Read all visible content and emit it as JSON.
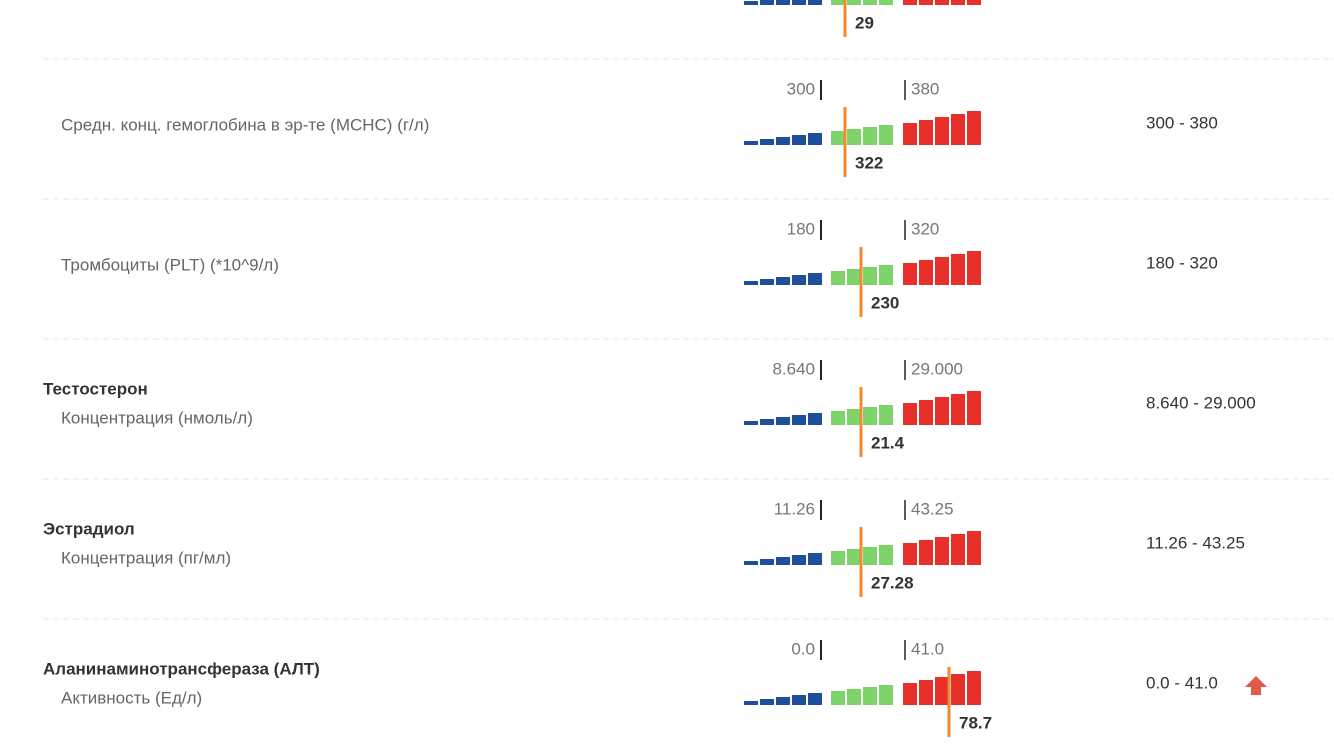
{
  "rows": [
    {
      "value": "29"
    },
    {
      "name": "Средн. конц. гемоглобина в эр-те (MCHC) (г/л)",
      "low": "300",
      "high": "380",
      "value": "322",
      "range": "300 - 380"
    },
    {
      "name": "Тромбоциты (PLT) (*10^9/л)",
      "low": "180",
      "high": "320",
      "value": "230",
      "range": "180 - 320"
    },
    {
      "group": "Тестостерон",
      "name": "Концентрация (нмоль/л)",
      "low": "8.640",
      "high": "29.000",
      "value": "21.4",
      "range": "8.640 - 29.000"
    },
    {
      "group": "Эстрадиол",
      "name": "Концентрация (пг/мл)",
      "low": "11.26",
      "high": "43.25",
      "value": "27.28",
      "range": "11.26 - 43.25"
    },
    {
      "group": "Аланинаминотрансфераза (АЛТ)",
      "name": "Активность (Ед/л)",
      "low": "0.0",
      "high": "41.0",
      "value": "78.7",
      "range": "0.0 - 41.0",
      "flag": "high"
    }
  ]
}
